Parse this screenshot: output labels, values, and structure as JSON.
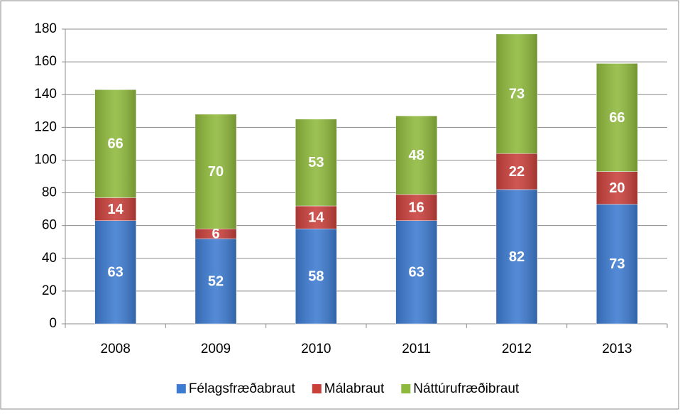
{
  "chart_data": {
    "type": "stacked_bar",
    "categories": [
      "2008",
      "2009",
      "2010",
      "2011",
      "2012",
      "2013"
    ],
    "series": [
      {
        "name": "Félagsfræðabraut",
        "color": "#3d7bd0",
        "values": [
          63,
          52,
          58,
          63,
          82,
          73
        ]
      },
      {
        "name": "Málabraut",
        "color": "#c9403b",
        "values": [
          14,
          6,
          14,
          16,
          22,
          20
        ]
      },
      {
        "name": "Náttúrufræðibraut",
        "color": "#8fb93c",
        "values": [
          66,
          70,
          53,
          48,
          73,
          66
        ]
      }
    ],
    "ylim": [
      0,
      180
    ],
    "yticks": [
      0,
      20,
      40,
      60,
      80,
      100,
      120,
      140,
      160,
      180
    ],
    "grid": true,
    "legend": "bottom"
  }
}
